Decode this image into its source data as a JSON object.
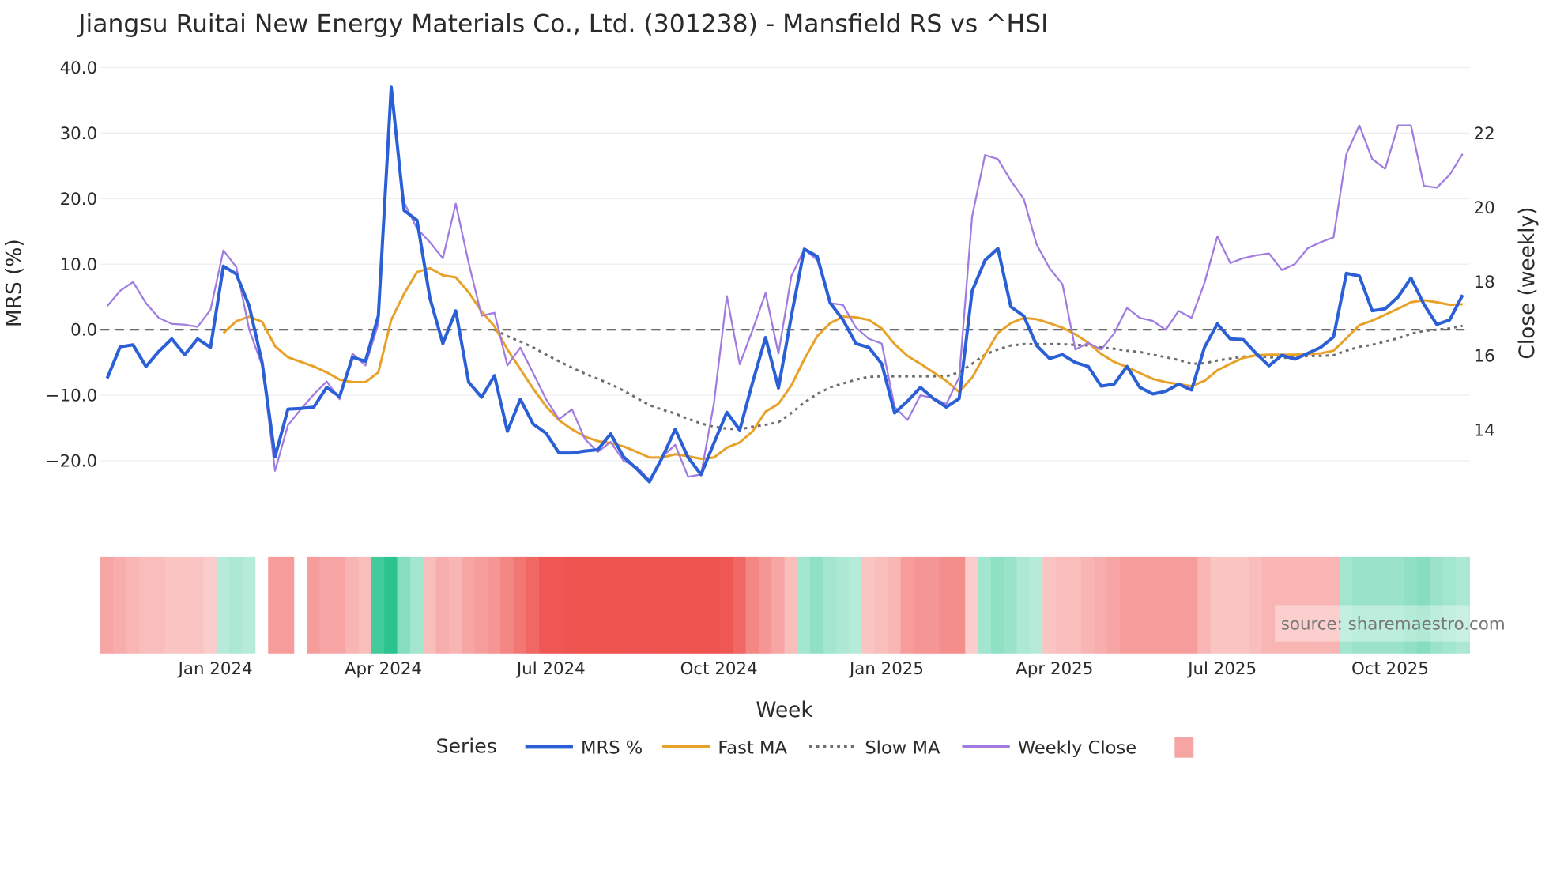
{
  "chart_data": {
    "type": "line",
    "title": "Jiangsu Ruitai New Energy Materials Co., Ltd. (301238) - Mansfield RS vs ^HSI",
    "xlabel": "Week",
    "ylabel": "MRS (%)",
    "y2label": "Close (weekly)",
    "ylim": [
      -27,
      41
    ],
    "y2lim": [
      12.2,
      23.4
    ],
    "yticks": [
      "40.0",
      "30.0",
      "20.0",
      "10.0",
      "0.0",
      "−10.0",
      "−20.0"
    ],
    "ytick_values": [
      40,
      30,
      20,
      10,
      0,
      -10,
      -20
    ],
    "y2ticks": [
      "22",
      "20",
      "18",
      "16",
      "14"
    ],
    "y2tick_values": [
      22,
      20,
      18,
      16,
      14
    ],
    "xticks": [
      "Jan 2024",
      "Apr 2024",
      "Jul 2024",
      "Oct 2024",
      "Jan 2025",
      "Apr 2025",
      "Jul 2025",
      "Oct 2025"
    ],
    "xtick_week_index": [
      8,
      21,
      34,
      47,
      60,
      73,
      86,
      99
    ],
    "weeks": 106,
    "grid": true,
    "zero_line": true,
    "legend": {
      "title": "Series",
      "placement": "bottom",
      "entries": [
        "MRS %",
        "Fast MA",
        "Slow MA",
        "Weekly Close"
      ]
    },
    "source": "source: sharemaestro.com",
    "colors": {
      "mrs": "#2a5fd6",
      "fast": "#e8a22a",
      "slow": "#6e6e6e",
      "close": "#a07ce0",
      "heat_neg": "#ef5350",
      "heat_pos": "#2bc48f",
      "legend_swatch": "#f6a5a5"
    },
    "series": [
      {
        "name": "MRS %",
        "axis": "left",
        "start": 0,
        "values": [
          -7.4,
          -2.6,
          -2.3,
          -5.6,
          -3.3,
          -1.4,
          -3.8,
          -1.4,
          -2.7,
          9.7,
          8.5,
          3.6,
          -5,
          -19.4,
          -12.1,
          -12,
          -11.8,
          -8.8,
          -10.2,
          -4.2,
          -4.8,
          2.1,
          37,
          18.2,
          16.7,
          4.8,
          -2.1,
          2.9,
          -8,
          -10.3,
          -7,
          -15.5,
          -10.6,
          -14.4,
          -15.8,
          -18.8,
          -18.8,
          -18.5,
          -18.3,
          -15.9,
          -19.4,
          -21.2,
          -23.2,
          -19.5,
          -15.2,
          -19.5,
          -22.1,
          -17.3,
          -12.6,
          -15.3,
          -8,
          -1.2,
          -8.9,
          2.1,
          12.3,
          11.2,
          4.1,
          1.5,
          -2.1,
          -2.7,
          -5.2,
          -12.7,
          -10.9,
          -8.8,
          -10.5,
          -11.8,
          -10.5,
          5.9,
          10.6,
          12.4,
          3.5,
          2.1,
          -2.4,
          -4.4,
          -3.8,
          -5,
          -5.6,
          -8.6,
          -8.3,
          -5.6,
          -8.8,
          -9.8,
          -9.4,
          -8.3,
          -9.2,
          -2.7,
          0.9,
          -1.4,
          -1.5,
          -3.6,
          -5.5,
          -3.9,
          -4.5,
          -3.6,
          -2.7,
          -1.1,
          8.6,
          8.2,
          2.9,
          3.2,
          5,
          7.9,
          3.9,
          0.8,
          1.5,
          5.3
        ]
      },
      {
        "name": "Fast MA",
        "axis": "left",
        "start": 9,
        "values": [
          -0.5,
          1.3,
          2,
          1.2,
          -2.5,
          -4.2,
          -4.9,
          -5.6,
          -6.5,
          -7.6,
          -8,
          -8,
          -6.5,
          1.5,
          5.5,
          8.8,
          9.4,
          8.3,
          8,
          5.7,
          2.8,
          0.5,
          -3,
          -6,
          -9,
          -11.7,
          -13.8,
          -15.2,
          -16.3,
          -17,
          -17.3,
          -17.8,
          -18.6,
          -19.5,
          -19.5,
          -19,
          -19.3,
          -19.7,
          -19.5,
          -18,
          -17.2,
          -15.5,
          -12.5,
          -11.3,
          -8.5,
          -4.5,
          -1,
          1,
          2,
          1.9,
          1.5,
          0.2,
          -2.2,
          -4,
          -5.2,
          -6.5,
          -7.8,
          -9.5,
          -7.3,
          -3.8,
          -0.5,
          1,
          1.8,
          1.6,
          1,
          0.3,
          -0.7,
          -2,
          -3.7,
          -4.9,
          -5.7,
          -6.6,
          -7.5,
          -8,
          -8.3,
          -8.6,
          -7.8,
          -6.2,
          -5.2,
          -4.3,
          -3.9,
          -3.8,
          -3.8,
          -3.8,
          -3.7,
          -3.6,
          -3.2,
          -1.3,
          0.7,
          1.4,
          2.3,
          3.2,
          4.2,
          4.5,
          4.2,
          3.8,
          3.9
        ]
      },
      {
        "name": "Slow MA",
        "axis": "left",
        "start": 30,
        "values": [
          0,
          -1,
          -1.8,
          -2.7,
          -3.8,
          -4.8,
          -5.8,
          -6.7,
          -7.5,
          -8.3,
          -9.3,
          -10.4,
          -11.5,
          -12.2,
          -12.8,
          -13.6,
          -14.3,
          -14.8,
          -15.1,
          -15.2,
          -14.8,
          -14.5,
          -14.1,
          -12.7,
          -11.1,
          -9.8,
          -8.8,
          -8.2,
          -7.6,
          -7.2,
          -7.1,
          -7.1,
          -7.1,
          -7.1,
          -7.1,
          -7.1,
          -6.5,
          -5.2,
          -3.8,
          -3,
          -2.4,
          -2.2,
          -2.2,
          -2.2,
          -2.2,
          -2.3,
          -2.4,
          -2.7,
          -2.9,
          -3.2,
          -3.4,
          -3.8,
          -4.2,
          -4.6,
          -5.2,
          -5.1,
          -4.7,
          -4.4,
          -4.1,
          -4,
          -4.2,
          -4.3,
          -4.2,
          -4,
          -4,
          -3.9,
          -3.2,
          -2.6,
          -2.3,
          -1.8,
          -1.3,
          -0.6,
          -0.2,
          0,
          0.2,
          0.6
        ]
      },
      {
        "name": "Weekly Close",
        "axis": "right",
        "start": 0,
        "values": [
          17.34,
          17.75,
          17.99,
          17.42,
          17.02,
          16.86,
          16.84,
          16.78,
          17.24,
          18.84,
          18.39,
          16.7,
          15.74,
          12.9,
          14.13,
          14.56,
          14.96,
          15.31,
          14.83,
          16.06,
          15.74,
          16.86,
          23.18,
          20.13,
          19.43,
          19.06,
          18.63,
          20.1,
          18.5,
          17.08,
          17.16,
          15.74,
          16.22,
          15.53,
          14.83,
          14.29,
          14.56,
          13.76,
          13.41,
          13.68,
          13.17,
          13.01,
          12.66,
          13.28,
          13.6,
          12.74,
          12.8,
          14.72,
          17.61,
          15.77,
          16.7,
          17.69,
          16.06,
          18.15,
          18.87,
          18.58,
          17.42,
          17.37,
          16.76,
          16.46,
          16.33,
          14.62,
          14.27,
          14.94,
          14.86,
          14.7,
          15.42,
          19.75,
          21.41,
          21.3,
          20.72,
          20.23,
          19,
          18.36,
          17.93,
          16.17,
          16.35,
          16.17,
          16.6,
          17.29,
          17.02,
          16.94,
          16.7,
          17.21,
          17.02,
          17.96,
          19.22,
          18.5,
          18.63,
          18.71,
          18.76,
          18.31,
          18.47,
          18.9,
          19.06,
          19.19,
          21.44,
          22.21,
          21.3,
          21.04,
          22.21,
          22.21,
          20.58,
          20.53,
          20.88,
          21.44
        ]
      }
    ],
    "heatmap": {
      "values": [
        -6,
        -5,
        -4,
        -3,
        -3,
        -2,
        -2,
        -2,
        -1,
        2,
        3,
        2,
        null,
        -7,
        -7,
        null,
        -7,
        -6,
        -6,
        -4,
        -3,
        14,
        18,
        7,
        4,
        -3,
        -5,
        -4,
        -6,
        -7,
        -8,
        -10,
        -12,
        -14,
        -16,
        -16,
        -17,
        -18,
        -18,
        -18,
        -19,
        -18,
        -18,
        -19,
        -20,
        -19,
        -20,
        -19,
        -16,
        -14,
        -10,
        -8,
        -6,
        -3,
        4,
        6,
        4,
        3,
        2,
        -2,
        -3,
        -4,
        -7,
        -8,
        -8,
        -9,
        -9,
        -1,
        4,
        6,
        5,
        3,
        2,
        -2,
        -3,
        -3,
        -4,
        -5,
        -6,
        -7,
        -7,
        -7,
        -7,
        -7,
        -7,
        -4,
        -2,
        -2,
        -2,
        -3,
        -4,
        -4,
        -4,
        -4,
        -4,
        -4,
        4,
        5,
        5,
        5,
        5,
        6,
        7,
        5,
        4,
        3,
        4
      ]
    }
  }
}
